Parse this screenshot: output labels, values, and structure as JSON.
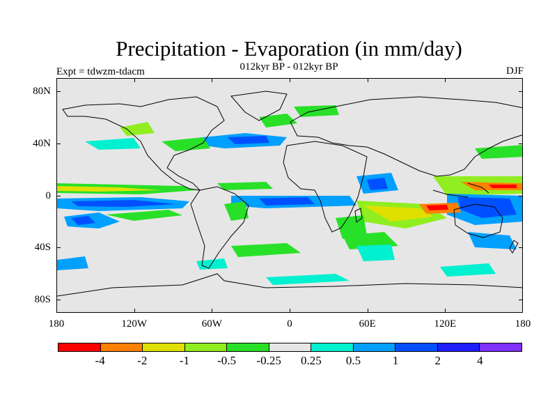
{
  "title": "Precipitation - Evaporation (in mm/day)",
  "subtitle": "012kyr BP - 012kyr BP",
  "experiment_label": "Expt = tdwzm-tdacm",
  "season_label": "DJF",
  "map": {
    "projection": "cylindrical equidistant",
    "lon_range": [
      -180,
      180
    ],
    "lat_range": [
      -90,
      90
    ],
    "background_color": "#e6e6e6",
    "coastline_color": "#000000",
    "lat_ticks": [
      {
        "value": 80,
        "label": "80N"
      },
      {
        "value": 40,
        "label": "40N"
      },
      {
        "value": 0,
        "label": "0"
      },
      {
        "value": -40,
        "label": "40S"
      },
      {
        "value": -80,
        "label": "80S"
      }
    ],
    "lon_ticks": [
      {
        "value": -180,
        "label": "180"
      },
      {
        "value": -120,
        "label": "120W"
      },
      {
        "value": -60,
        "label": "60W"
      },
      {
        "value": 0,
        "label": "0"
      },
      {
        "value": 60,
        "label": "60E"
      },
      {
        "value": 120,
        "label": "120E"
      },
      {
        "value": 180,
        "label": "180"
      }
    ]
  },
  "colorbar": {
    "colors": [
      "#ff0000",
      "#ff8000",
      "#e0e000",
      "#90ee20",
      "#28e028",
      "#e6e6e6",
      "#00f0d0",
      "#00a0ff",
      "#0050ff",
      "#1e1eff",
      "#8030ff"
    ],
    "labels": [
      "-4",
      "-2",
      "-1",
      "-0.5",
      "-0.25",
      "0.25",
      "0.5",
      "1",
      "2",
      "4"
    ]
  }
}
